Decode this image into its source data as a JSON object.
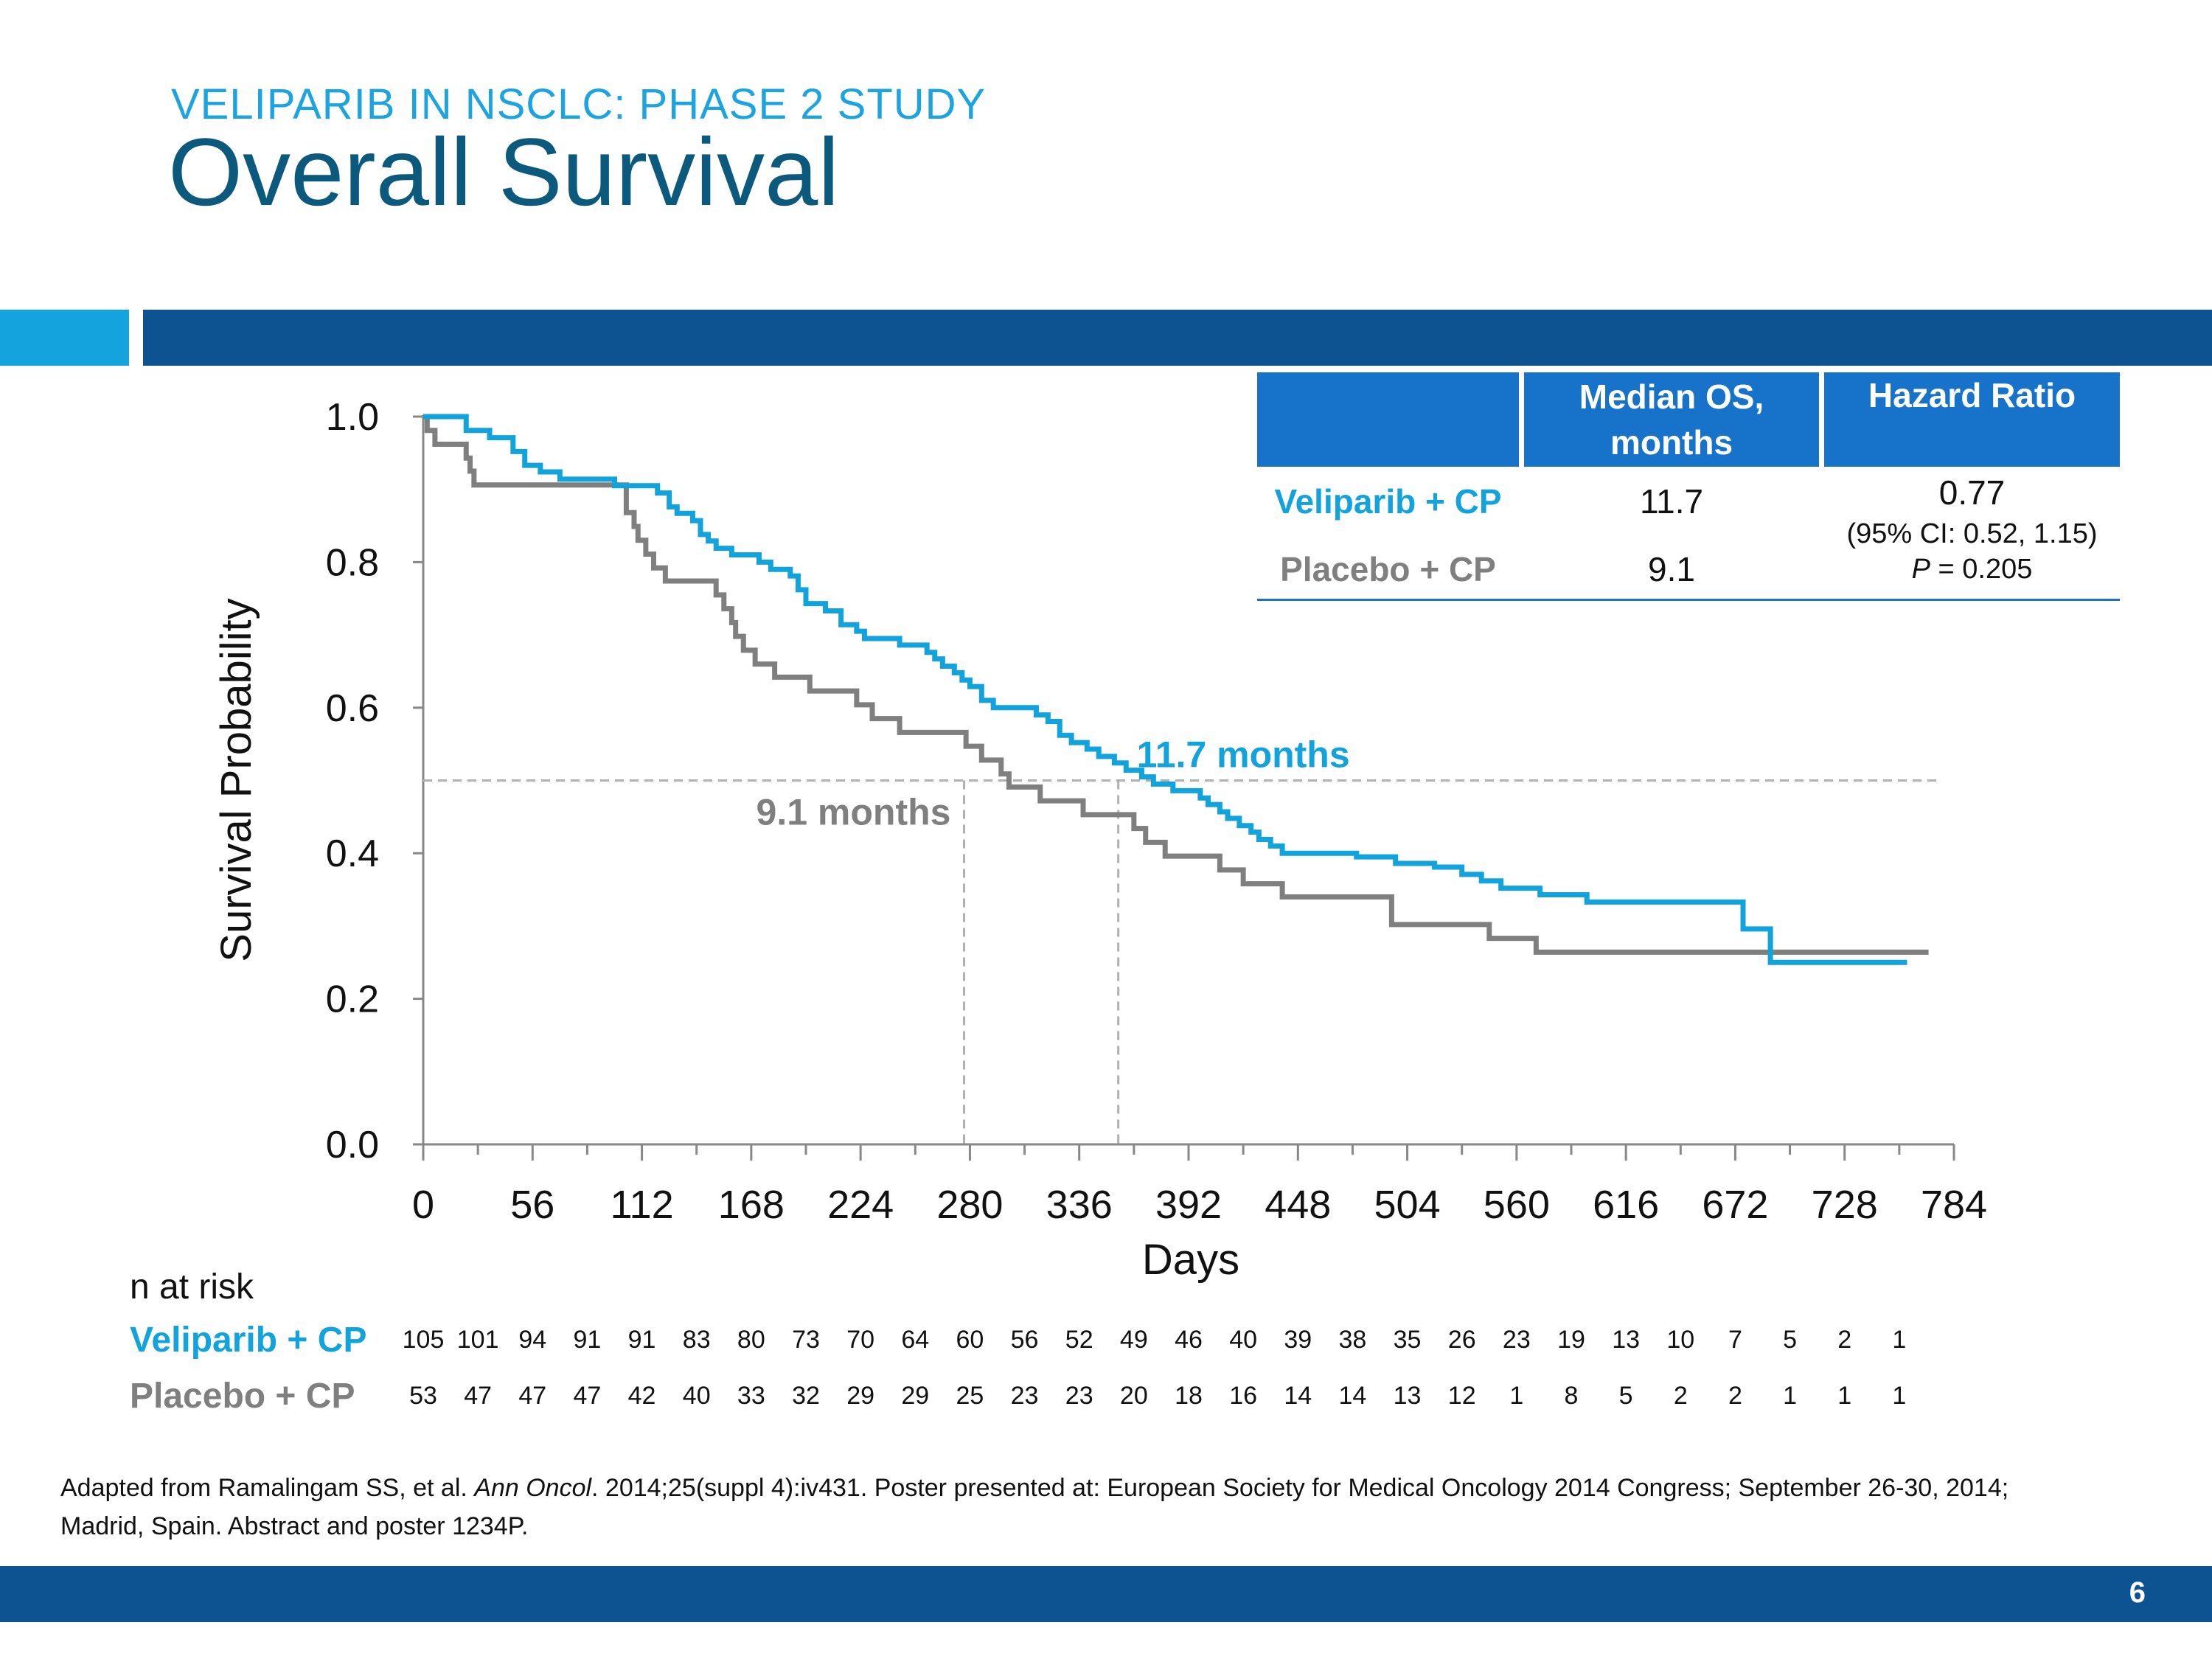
{
  "slide": {
    "subtitle": "VELIPARIB IN NSCLC: PHASE 2 STUDY",
    "title": "Overall Survival",
    "page_number": "6",
    "accent_color": "#14a3dd",
    "brand_color": "#0d5291"
  },
  "citation": {
    "pre": "Adapted from Ramalingam SS, et al. ",
    "journal": "Ann Oncol",
    "post": ". 2014;25(suppl 4):iv431. Poster presented at: European Society for Medical Oncology 2014 Congress; September 26-30, 2014; Madrid, Spain. Abstract and poster 1234P."
  },
  "summary_table": {
    "headers": [
      "",
      "Median OS, months",
      "Hazard Ratio"
    ],
    "rows": [
      {
        "arm": "Veliparib + CP",
        "median_os": "11.7"
      },
      {
        "arm": "Placebo + CP",
        "median_os": "9.1"
      }
    ],
    "hazard_ratio": "0.77",
    "ci": "(95% CI: 0.52, 1.15)",
    "p_label": "P",
    "p_value": " = 0.205"
  },
  "chart_data": {
    "type": "line",
    "subtype": "kaplan-meier step",
    "xlabel": "Days",
    "ylabel": "Survival Probability",
    "xlim": [
      0,
      784
    ],
    "ylim": [
      0,
      1
    ],
    "xticks": [
      0,
      56,
      112,
      168,
      224,
      280,
      336,
      392,
      448,
      504,
      560,
      616,
      672,
      728,
      784
    ],
    "yticks": [
      "0.0",
      "0.2",
      "0.4",
      "0.6",
      "0.8",
      "1.0"
    ],
    "grid": false,
    "median_line_y": 0.5,
    "annotations": [
      {
        "text": "11.7 months",
        "x": 356,
        "series": "Veliparib + CP"
      },
      {
        "text": "9.1 months",
        "x": 277,
        "series": "Placebo + CP"
      }
    ],
    "series": [
      {
        "name": "Veliparib + CP",
        "color": "#12a3dc",
        "points": [
          [
            0,
            1.0
          ],
          [
            14,
            1.0
          ],
          [
            22,
            0.981
          ],
          [
            34,
            0.971
          ],
          [
            46,
            0.952
          ],
          [
            52,
            0.933
          ],
          [
            60,
            0.924
          ],
          [
            70,
            0.914
          ],
          [
            95,
            0.914
          ],
          [
            98,
            0.905
          ],
          [
            114,
            0.905
          ],
          [
            120,
            0.895
          ],
          [
            126,
            0.876
          ],
          [
            130,
            0.867
          ],
          [
            138,
            0.857
          ],
          [
            142,
            0.838
          ],
          [
            146,
            0.829
          ],
          [
            150,
            0.819
          ],
          [
            158,
            0.81
          ],
          [
            172,
            0.8
          ],
          [
            178,
            0.79
          ],
          [
            188,
            0.781
          ],
          [
            192,
            0.762
          ],
          [
            196,
            0.743
          ],
          [
            206,
            0.733
          ],
          [
            214,
            0.714
          ],
          [
            222,
            0.705
          ],
          [
            226,
            0.695
          ],
          [
            244,
            0.686
          ],
          [
            258,
            0.676
          ],
          [
            262,
            0.667
          ],
          [
            266,
            0.657
          ],
          [
            272,
            0.648
          ],
          [
            276,
            0.638
          ],
          [
            280,
            0.629
          ],
          [
            286,
            0.61
          ],
          [
            292,
            0.6
          ],
          [
            310,
            0.6
          ],
          [
            314,
            0.59
          ],
          [
            320,
            0.581
          ],
          [
            326,
            0.562
          ],
          [
            332,
            0.552
          ],
          [
            340,
            0.543
          ],
          [
            346,
            0.533
          ],
          [
            354,
            0.524
          ],
          [
            360,
            0.514
          ],
          [
            368,
            0.505
          ],
          [
            374,
            0.495
          ],
          [
            384,
            0.486
          ],
          [
            398,
            0.476
          ],
          [
            402,
            0.467
          ],
          [
            408,
            0.457
          ],
          [
            412,
            0.448
          ],
          [
            418,
            0.438
          ],
          [
            424,
            0.429
          ],
          [
            428,
            0.419
          ],
          [
            434,
            0.41
          ],
          [
            440,
            0.4
          ],
          [
            472,
            0.4
          ],
          [
            478,
            0.395
          ],
          [
            498,
            0.386
          ],
          [
            518,
            0.381
          ],
          [
            532,
            0.371
          ],
          [
            542,
            0.362
          ],
          [
            552,
            0.352
          ],
          [
            572,
            0.343
          ],
          [
            596,
            0.333
          ],
          [
            672,
            0.333
          ],
          [
            676,
            0.296
          ],
          [
            686,
            0.296
          ],
          [
            690,
            0.25
          ],
          [
            760,
            0.25
          ]
        ]
      },
      {
        "name": "Placebo + CP",
        "color": "#7f7f7f",
        "points": [
          [
            0,
            1.0
          ],
          [
            2,
            0.981
          ],
          [
            6,
            0.962
          ],
          [
            20,
            0.962
          ],
          [
            22,
            0.943
          ],
          [
            24,
            0.925
          ],
          [
            26,
            0.906
          ],
          [
            96,
            0.906
          ],
          [
            104,
            0.868
          ],
          [
            108,
            0.849
          ],
          [
            110,
            0.83
          ],
          [
            114,
            0.811
          ],
          [
            118,
            0.792
          ],
          [
            124,
            0.774
          ],
          [
            148,
            0.774
          ],
          [
            150,
            0.755
          ],
          [
            154,
            0.736
          ],
          [
            158,
            0.717
          ],
          [
            160,
            0.698
          ],
          [
            164,
            0.679
          ],
          [
            170,
            0.66
          ],
          [
            180,
            0.642
          ],
          [
            198,
            0.623
          ],
          [
            222,
            0.604
          ],
          [
            230,
            0.585
          ],
          [
            244,
            0.566
          ],
          [
            272,
            0.566
          ],
          [
            278,
            0.547
          ],
          [
            286,
            0.528
          ],
          [
            296,
            0.509
          ],
          [
            300,
            0.491
          ],
          [
            316,
            0.472
          ],
          [
            338,
            0.453
          ],
          [
            364,
            0.434
          ],
          [
            370,
            0.415
          ],
          [
            380,
            0.396
          ],
          [
            402,
            0.396
          ],
          [
            408,
            0.377
          ],
          [
            420,
            0.358
          ],
          [
            440,
            0.34
          ],
          [
            490,
            0.34
          ],
          [
            496,
            0.302
          ],
          [
            542,
            0.302
          ],
          [
            546,
            0.283
          ],
          [
            566,
            0.283
          ],
          [
            570,
            0.264
          ],
          [
            771,
            0.264
          ]
        ]
      }
    ]
  },
  "risk_table": {
    "title": "n at risk",
    "rows": [
      {
        "label": "Veliparib + CP",
        "color": "#12a3dc",
        "values": [
          "105",
          "101",
          "94",
          "91",
          "91",
          "83",
          "80",
          "73",
          "70",
          "64",
          "60",
          "56",
          "52",
          "49",
          "46",
          "40",
          "39",
          "38",
          "35",
          "26",
          "23",
          "19",
          "13",
          "10",
          "7",
          "5",
          "2",
          "1"
        ]
      },
      {
        "label": "Placebo + CP",
        "color": "#7f7f7f",
        "values": [
          "53",
          "47",
          "47",
          "47",
          "42",
          "40",
          "33",
          "32",
          "29",
          "29",
          "25",
          "23",
          "23",
          "20",
          "18",
          "16",
          "14",
          "14",
          "13",
          "12",
          "1",
          "8",
          "5",
          "2",
          "2",
          "1",
          "1",
          "1"
        ]
      }
    ]
  }
}
